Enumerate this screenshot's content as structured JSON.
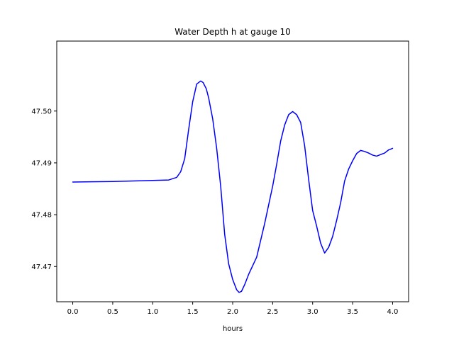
{
  "chart_data": {
    "type": "line",
    "title": "Water Depth h at gauge 10",
    "xlabel": "hours",
    "ylabel": "",
    "xlim": [
      -0.2,
      4.2
    ],
    "ylim": [
      47.4632,
      47.5135
    ],
    "xticks": [
      0.0,
      0.5,
      1.0,
      1.5,
      2.0,
      2.5,
      3.0,
      3.5,
      4.0
    ],
    "xtick_labels": [
      "0.0",
      "0.5",
      "1.0",
      "1.5",
      "2.0",
      "2.5",
      "3.0",
      "3.5",
      "4.0"
    ],
    "yticks": [
      47.47,
      47.48,
      47.49,
      47.5
    ],
    "ytick_labels": [
      "47.47",
      "47.48",
      "47.49",
      "47.50"
    ],
    "grid": false,
    "legend": "none",
    "line_color": "#0000ff",
    "series": [
      {
        "x": [
          0.0,
          0.5,
          1.0,
          1.2,
          1.3,
          1.35,
          1.4,
          1.45,
          1.5,
          1.55,
          1.6,
          1.63,
          1.67,
          1.7,
          1.75,
          1.8,
          1.85,
          1.9,
          1.95,
          2.0,
          2.05,
          2.08,
          2.11,
          2.15,
          2.2,
          2.3,
          2.4,
          2.5,
          2.55,
          2.6,
          2.65,
          2.7,
          2.75,
          2.8,
          2.85,
          2.9,
          2.95,
          3.0,
          3.05,
          3.1,
          3.15,
          3.2,
          3.25,
          3.3,
          3.35,
          3.4,
          3.45,
          3.5,
          3.55,
          3.6,
          3.65,
          3.7,
          3.75,
          3.8,
          3.85,
          3.9,
          3.95,
          4.0
        ],
        "y": [
          47.4863,
          47.4864,
          47.4866,
          47.4867,
          47.4872,
          47.4883,
          47.4908,
          47.4965,
          47.5018,
          47.5052,
          47.5058,
          47.5055,
          47.5043,
          47.5025,
          47.4985,
          47.4928,
          47.4855,
          47.4762,
          47.4705,
          47.4675,
          47.4655,
          47.465,
          47.4652,
          47.4665,
          47.4685,
          47.4718,
          47.4783,
          47.4855,
          47.4897,
          47.4942,
          47.4973,
          47.4993,
          47.4999,
          47.4993,
          47.4978,
          47.4933,
          47.4868,
          47.4808,
          47.4778,
          47.4745,
          47.4726,
          47.4737,
          47.4758,
          47.4789,
          47.4823,
          47.4865,
          47.4888,
          47.4904,
          47.4918,
          47.4924,
          47.4922,
          47.4919,
          47.4915,
          47.4913,
          47.4916,
          47.4919,
          47.4925,
          47.4928
        ]
      }
    ]
  }
}
